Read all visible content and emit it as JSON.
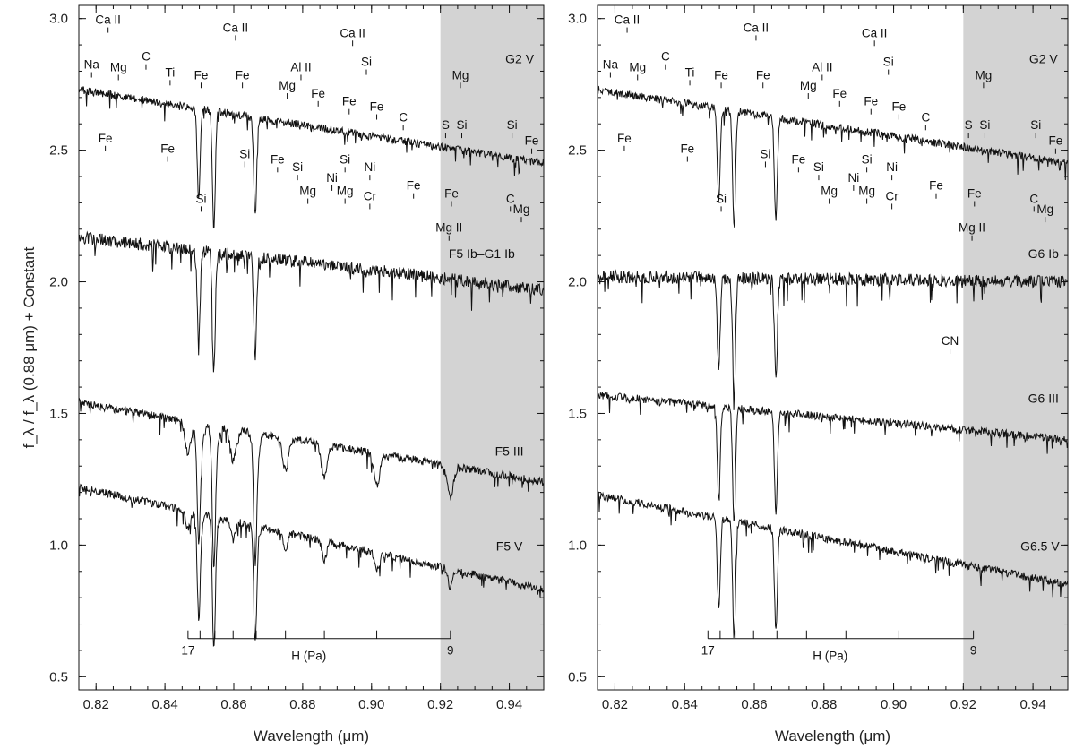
{
  "chart_data": [
    {
      "type": "line",
      "panel": "left",
      "xlabel": "Wavelength (μm)",
      "ylabel": "f_λ / f_λ (0.88 μm) + Constant",
      "xlim": [
        0.815,
        0.95
      ],
      "ylim": [
        0.45,
        3.05
      ],
      "xticks": [
        "0.82",
        "0.84",
        "0.86",
        "0.88",
        "0.90",
        "0.92",
        "0.94"
      ],
      "yticks": [
        "0.5",
        "1.0",
        "1.5",
        "2.0",
        "2.5",
        "3.0"
      ],
      "shaded_region": [
        0.92,
        0.95
      ],
      "series": [
        {
          "name": "G2  V",
          "start": 2.73,
          "end": 2.45,
          "label_at": [
            0.943,
            2.83
          ]
        },
        {
          "name": "F5 Ib–G1 Ib",
          "start": 2.17,
          "end": 1.97,
          "label_at": [
            0.932,
            2.09
          ]
        },
        {
          "name": "F5 III",
          "start": 1.54,
          "end": 1.24,
          "label_at": [
            0.94,
            1.34
          ]
        },
        {
          "name": "F5  V",
          "start": 1.22,
          "end": 0.83,
          "label_at": [
            0.94,
            0.98
          ]
        }
      ],
      "annotations": [
        {
          "text": "Ca II",
          "x": 0.8235,
          "y": 2.98
        },
        {
          "text": "Na",
          "x": 0.8187,
          "y": 2.81
        },
        {
          "text": "Mg",
          "x": 0.8265,
          "y": 2.8
        },
        {
          "text": "C",
          "x": 0.8345,
          "y": 2.84
        },
        {
          "text": "Ti",
          "x": 0.8415,
          "y": 2.78
        },
        {
          "text": "Ca II",
          "x": 0.8605,
          "y": 2.95
        },
        {
          "text": "Fe",
          "x": 0.8505,
          "y": 2.77
        },
        {
          "text": "Fe",
          "x": 0.8625,
          "y": 2.77
        },
        {
          "text": "Al II",
          "x": 0.8795,
          "y": 2.8
        },
        {
          "text": "Mg",
          "x": 0.8755,
          "y": 2.73
        },
        {
          "text": "Fe",
          "x": 0.8845,
          "y": 2.7
        },
        {
          "text": "Ca II",
          "x": 0.8945,
          "y": 2.93
        },
        {
          "text": "Si",
          "x": 0.8985,
          "y": 2.82
        },
        {
          "text": "Fe",
          "x": 0.8935,
          "y": 2.67
        },
        {
          "text": "Fe",
          "x": 0.9015,
          "y": 2.65
        },
        {
          "text": "C",
          "x": 0.9092,
          "y": 2.61
        },
        {
          "text": "Mg",
          "x": 0.9258,
          "y": 2.77
        },
        {
          "text": "S",
          "x": 0.9215,
          "y": 2.58
        },
        {
          "text": "Si",
          "x": 0.9262,
          "y": 2.58
        },
        {
          "text": "Si",
          "x": 0.9408,
          "y": 2.58
        },
        {
          "text": "Fe",
          "x": 0.9465,
          "y": 2.52
        },
        {
          "text": "Fe",
          "x": 0.8227,
          "y": 2.53
        },
        {
          "text": "Fe",
          "x": 0.8408,
          "y": 2.49
        },
        {
          "text": "Si",
          "x": 0.8632,
          "y": 2.47
        },
        {
          "text": "Fe",
          "x": 0.8727,
          "y": 2.45
        },
        {
          "text": "Si",
          "x": 0.8785,
          "y": 2.42
        },
        {
          "text": "Si",
          "x": 0.8923,
          "y": 2.45
        },
        {
          "text": "Ni",
          "x": 0.8995,
          "y": 2.42
        },
        {
          "text": "Fe",
          "x": 0.9122,
          "y": 2.35
        },
        {
          "text": "Mg",
          "x": 0.8815,
          "y": 2.33
        },
        {
          "text": "Ni",
          "x": 0.8885,
          "y": 2.38
        },
        {
          "text": "Mg",
          "x": 0.8923,
          "y": 2.33
        },
        {
          "text": "Cr",
          "x": 0.8995,
          "y": 2.31
        },
        {
          "text": "Si",
          "x": 0.8505,
          "y": 2.3
        },
        {
          "text": "Fe",
          "x": 0.9232,
          "y": 2.32
        },
        {
          "text": "Mg II",
          "x": 0.9225,
          "y": 2.19
        },
        {
          "text": "C",
          "x": 0.9403,
          "y": 2.3
        },
        {
          "text": "Mg",
          "x": 0.9435,
          "y": 2.26
        }
      ],
      "hydrogen_series": {
        "label": "H (Pa)",
        "start_label": "17",
        "end_label": "9",
        "x_start": 0.8467,
        "x_end": 0.9229
      }
    },
    {
      "type": "line",
      "panel": "right",
      "xlabel": "Wavelength (μm)",
      "xlim": [
        0.815,
        0.95
      ],
      "ylim": [
        0.45,
        3.05
      ],
      "xticks": [
        "0.82",
        "0.84",
        "0.86",
        "0.88",
        "0.90",
        "0.92",
        "0.94"
      ],
      "yticks": [
        "0.5",
        "1.0",
        "1.5",
        "2.0",
        "2.5",
        "3.0"
      ],
      "shaded_region": [
        0.92,
        0.95
      ],
      "series": [
        {
          "name": "G2  V",
          "start": 2.73,
          "end": 2.45,
          "label_at": [
            0.943,
            2.83
          ]
        },
        {
          "name": "G6 Ib",
          "start": 2.02,
          "end": 2.0,
          "label_at": [
            0.943,
            2.09
          ]
        },
        {
          "name": "G6 III",
          "start": 1.57,
          "end": 1.4,
          "label_at": [
            0.943,
            1.54
          ]
        },
        {
          "name": "G6.5 V",
          "start": 1.19,
          "end": 0.85,
          "label_at": [
            0.942,
            0.98
          ]
        }
      ],
      "annotations": [
        {
          "text": "Ca II",
          "x": 0.8235,
          "y": 2.98
        },
        {
          "text": "Na",
          "x": 0.8187,
          "y": 2.81
        },
        {
          "text": "Mg",
          "x": 0.8265,
          "y": 2.8
        },
        {
          "text": "C",
          "x": 0.8345,
          "y": 2.84
        },
        {
          "text": "Ti",
          "x": 0.8415,
          "y": 2.78
        },
        {
          "text": "Ca II",
          "x": 0.8605,
          "y": 2.95
        },
        {
          "text": "Fe",
          "x": 0.8505,
          "y": 2.77
        },
        {
          "text": "Fe",
          "x": 0.8625,
          "y": 2.77
        },
        {
          "text": "Al II",
          "x": 0.8795,
          "y": 2.8
        },
        {
          "text": "Mg",
          "x": 0.8755,
          "y": 2.73
        },
        {
          "text": "Fe",
          "x": 0.8845,
          "y": 2.7
        },
        {
          "text": "Ca II",
          "x": 0.8945,
          "y": 2.93
        },
        {
          "text": "Si",
          "x": 0.8985,
          "y": 2.82
        },
        {
          "text": "Fe",
          "x": 0.8935,
          "y": 2.67
        },
        {
          "text": "Fe",
          "x": 0.9015,
          "y": 2.65
        },
        {
          "text": "C",
          "x": 0.9092,
          "y": 2.61
        },
        {
          "text": "Mg",
          "x": 0.9258,
          "y": 2.77
        },
        {
          "text": "S",
          "x": 0.9215,
          "y": 2.58
        },
        {
          "text": "Si",
          "x": 0.9262,
          "y": 2.58
        },
        {
          "text": "Si",
          "x": 0.9408,
          "y": 2.58
        },
        {
          "text": "Fe",
          "x": 0.9465,
          "y": 2.52
        },
        {
          "text": "Fe",
          "x": 0.8227,
          "y": 2.53
        },
        {
          "text": "Fe",
          "x": 0.8408,
          "y": 2.49
        },
        {
          "text": "Si",
          "x": 0.8632,
          "y": 2.47
        },
        {
          "text": "Fe",
          "x": 0.8727,
          "y": 2.45
        },
        {
          "text": "Si",
          "x": 0.8785,
          "y": 2.42
        },
        {
          "text": "Si",
          "x": 0.8923,
          "y": 2.45
        },
        {
          "text": "Ni",
          "x": 0.8995,
          "y": 2.42
        },
        {
          "text": "Fe",
          "x": 0.9122,
          "y": 2.35
        },
        {
          "text": "Mg",
          "x": 0.8815,
          "y": 2.33
        },
        {
          "text": "Ni",
          "x": 0.8885,
          "y": 2.38
        },
        {
          "text": "Mg",
          "x": 0.8923,
          "y": 2.33
        },
        {
          "text": "Cr",
          "x": 0.8995,
          "y": 2.31
        },
        {
          "text": "Si",
          "x": 0.8505,
          "y": 2.3
        },
        {
          "text": "Fe",
          "x": 0.9232,
          "y": 2.32
        },
        {
          "text": "Mg II",
          "x": 0.9225,
          "y": 2.19
        },
        {
          "text": "C",
          "x": 0.9403,
          "y": 2.3
        },
        {
          "text": "Mg",
          "x": 0.9435,
          "y": 2.26
        },
        {
          "text": "CN",
          "x": 0.9162,
          "y": 1.76
        }
      ],
      "hydrogen_series": {
        "label": "H (Pa)",
        "start_label": "17",
        "end_label": "9",
        "x_start": 0.8467,
        "x_end": 0.9229
      }
    }
  ],
  "colors": {
    "shade": "#d3d3d3",
    "line": "#111111",
    "axis": "#111111"
  }
}
